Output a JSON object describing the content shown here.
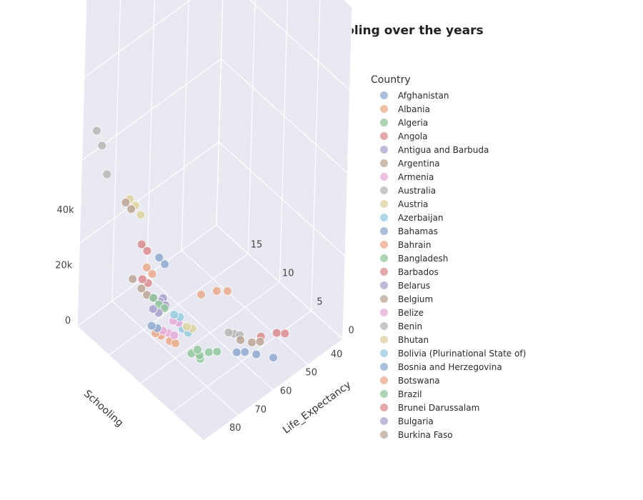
{
  "chart_data": {
    "type": "scatter3d",
    "title": "GDP vs Mean Years of Schooling over the years",
    "x_axis": {
      "title": "Schooling",
      "range": [
        0,
        20
      ],
      "ticks": [
        "0",
        "5",
        "10",
        "15"
      ]
    },
    "y_axis": {
      "title": "Life_Expectancy",
      "range": [
        35,
        90
      ],
      "ticks": [
        "40",
        "50",
        "60",
        "70",
        "80"
      ]
    },
    "z_axis": {
      "title": "",
      "range": [
        0,
        120000
      ],
      "ticks": [
        "0",
        "20k",
        "40k"
      ]
    },
    "legend_title": "Country",
    "legend_placement": "right",
    "series": [
      {
        "name": "Afghanistan",
        "color": "#8fa9d0",
        "points": [
          [
            4.5,
            58,
            600
          ],
          [
            5.5,
            60,
            700
          ],
          [
            3,
            55,
            500
          ],
          [
            6,
            62,
            900
          ]
        ]
      },
      {
        "name": "Albania",
        "color": "#e9aa8c",
        "points": [
          [
            11,
            76,
            4000
          ],
          [
            12,
            77,
            4500
          ],
          [
            10.5,
            75,
            3500
          ],
          [
            12.5,
            78,
            5000
          ]
        ]
      },
      {
        "name": "Algeria",
        "color": "#92c79c",
        "points": [
          [
            7,
            74,
            4500
          ],
          [
            8,
            75,
            5000
          ],
          [
            7.5,
            73,
            4000
          ]
        ]
      },
      {
        "name": "Angola",
        "color": "#da8c8f",
        "points": [
          [
            4.5,
            50,
            3000
          ],
          [
            5,
            55,
            4000
          ],
          [
            4,
            48,
            2500
          ]
        ]
      },
      {
        "name": "Antigua and Barbuda",
        "color": "#a9a1cd",
        "points": [
          [
            13,
            74,
            14000
          ],
          [
            12.5,
            75,
            13000
          ]
        ]
      },
      {
        "name": "Argentina",
        "color": "#bca595",
        "points": [
          [
            16,
            75,
            12000
          ],
          [
            17,
            76,
            14000
          ],
          [
            15.5,
            74,
            10000
          ]
        ]
      },
      {
        "name": "Armenia",
        "color": "#e6abd8",
        "points": [
          [
            12,
            74,
            3500
          ],
          [
            12.5,
            75,
            4000
          ],
          [
            11.5,
            73,
            3000
          ]
        ]
      },
      {
        "name": "Australia",
        "color": "#b6b6b6",
        "points": [
          [
            20,
            82,
            60000
          ],
          [
            19.5,
            81,
            50000
          ],
          [
            20.5,
            83,
            65000
          ]
        ]
      },
      {
        "name": "Austria",
        "color": "#ddd2a0",
        "points": [
          [
            15,
            81,
            48000
          ],
          [
            15.5,
            82,
            50000
          ],
          [
            14.5,
            80,
            45000
          ]
        ]
      },
      {
        "name": "Azerbaijan",
        "color": "#96cbe0",
        "points": [
          [
            11,
            71,
            5000
          ],
          [
            11.5,
            72,
            7000
          ],
          [
            10.5,
            70,
            4000
          ]
        ]
      },
      {
        "name": "Bahamas",
        "color": "#8fa9d0",
        "points": [
          [
            12.5,
            75,
            28000
          ],
          [
            13,
            76,
            30000
          ]
        ]
      },
      {
        "name": "Bahrain",
        "color": "#e9aa8c",
        "points": [
          [
            14,
            76,
            22000
          ],
          [
            14.5,
            77,
            24000
          ]
        ]
      },
      {
        "name": "Bangladesh",
        "color": "#92c79c",
        "points": [
          [
            8,
            68,
            800
          ],
          [
            9,
            70,
            1000
          ],
          [
            7.5,
            66,
            700
          ]
        ]
      },
      {
        "name": "Barbados",
        "color": "#da8c8f",
        "points": [
          [
            15,
            75,
            16000
          ],
          [
            15.5,
            76,
            17000
          ]
        ]
      },
      {
        "name": "Belarus",
        "color": "#a9a1cd",
        "points": [
          [
            15,
            70,
            6000
          ],
          [
            15.5,
            71,
            7000
          ],
          [
            14.5,
            69,
            5000
          ]
        ]
      },
      {
        "name": "Belgium",
        "color": "#bca595",
        "points": [
          [
            16,
            80,
            44000
          ],
          [
            16.5,
            81,
            46000
          ]
        ]
      },
      {
        "name": "Belize",
        "color": "#e6abd8",
        "points": [
          [
            12,
            70,
            4500
          ],
          [
            12.5,
            71,
            4800
          ]
        ]
      },
      {
        "name": "Benin",
        "color": "#b6b6b6",
        "points": [
          [
            8,
            58,
            800
          ],
          [
            8.5,
            59,
            900
          ],
          [
            7.5,
            57,
            700
          ]
        ]
      },
      {
        "name": "Bhutan",
        "color": "#ddd2a0",
        "points": [
          [
            11,
            67,
            2500
          ],
          [
            11.5,
            68,
            2800
          ]
        ]
      },
      {
        "name": "Bolivia (Plurinational State of)",
        "color": "#96cbe0",
        "points": [
          [
            13,
            67,
            2500
          ],
          [
            13.5,
            68,
            3000
          ]
        ]
      },
      {
        "name": "Bosnia and Herzegovina",
        "color": "#8fa9d0",
        "points": [
          [
            13,
            76,
            4500
          ],
          [
            13.5,
            77,
            5000
          ]
        ]
      },
      {
        "name": "Botswana",
        "color": "#e9aa8c",
        "points": [
          [
            12,
            55,
            6000
          ],
          [
            12.5,
            60,
            7000
          ],
          [
            11.5,
            52,
            5000
          ]
        ]
      },
      {
        "name": "Brazil",
        "color": "#92c79c",
        "points": [
          [
            14,
            73,
            9000
          ],
          [
            14.5,
            74,
            11000
          ],
          [
            13.5,
            72,
            8000
          ]
        ]
      },
      {
        "name": "Brunei Darussalam",
        "color": "#da8c8f",
        "points": [
          [
            14.5,
            77,
            30000
          ],
          [
            15,
            78,
            32000
          ]
        ]
      },
      {
        "name": "Bulgaria",
        "color": "#a9a1cd",
        "points": [
          [
            14,
            73,
            6000
          ],
          [
            14.5,
            74,
            7000
          ]
        ]
      },
      {
        "name": "Burkina Faso",
        "color": "#bca595",
        "points": [
          [
            6,
            56,
            500
          ],
          [
            7,
            58,
            600
          ],
          [
            5.5,
            54,
            450
          ]
        ]
      }
    ]
  }
}
